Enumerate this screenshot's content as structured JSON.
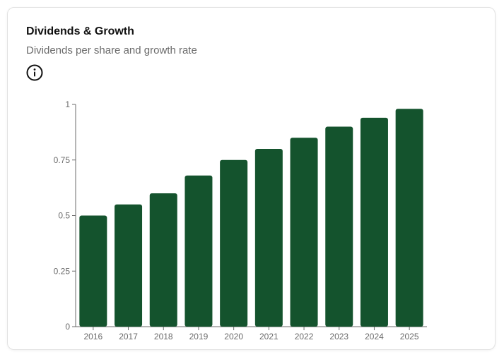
{
  "card": {
    "title": "Dividends & Growth",
    "subtitle": "Dividends per share and growth rate",
    "info_icon": "info-circle-icon"
  },
  "chart_data": {
    "type": "bar",
    "categories": [
      "2016",
      "2017",
      "2018",
      "2019",
      "2020",
      "2021",
      "2022",
      "2023",
      "2024",
      "2025"
    ],
    "values": [
      0.5,
      0.55,
      0.6,
      0.68,
      0.75,
      0.8,
      0.85,
      0.9,
      0.94,
      0.98
    ],
    "y_ticks": [
      {
        "value": 0,
        "label": "0"
      },
      {
        "value": 0.25,
        "label": "0.25"
      },
      {
        "value": 0.5,
        "label": "0.5"
      },
      {
        "value": 0.75,
        "label": "0.75"
      },
      {
        "value": 1,
        "label": "1"
      }
    ],
    "ylim": [
      0,
      1
    ],
    "bar_color": "#14532d",
    "grid": false,
    "legend": "none"
  }
}
